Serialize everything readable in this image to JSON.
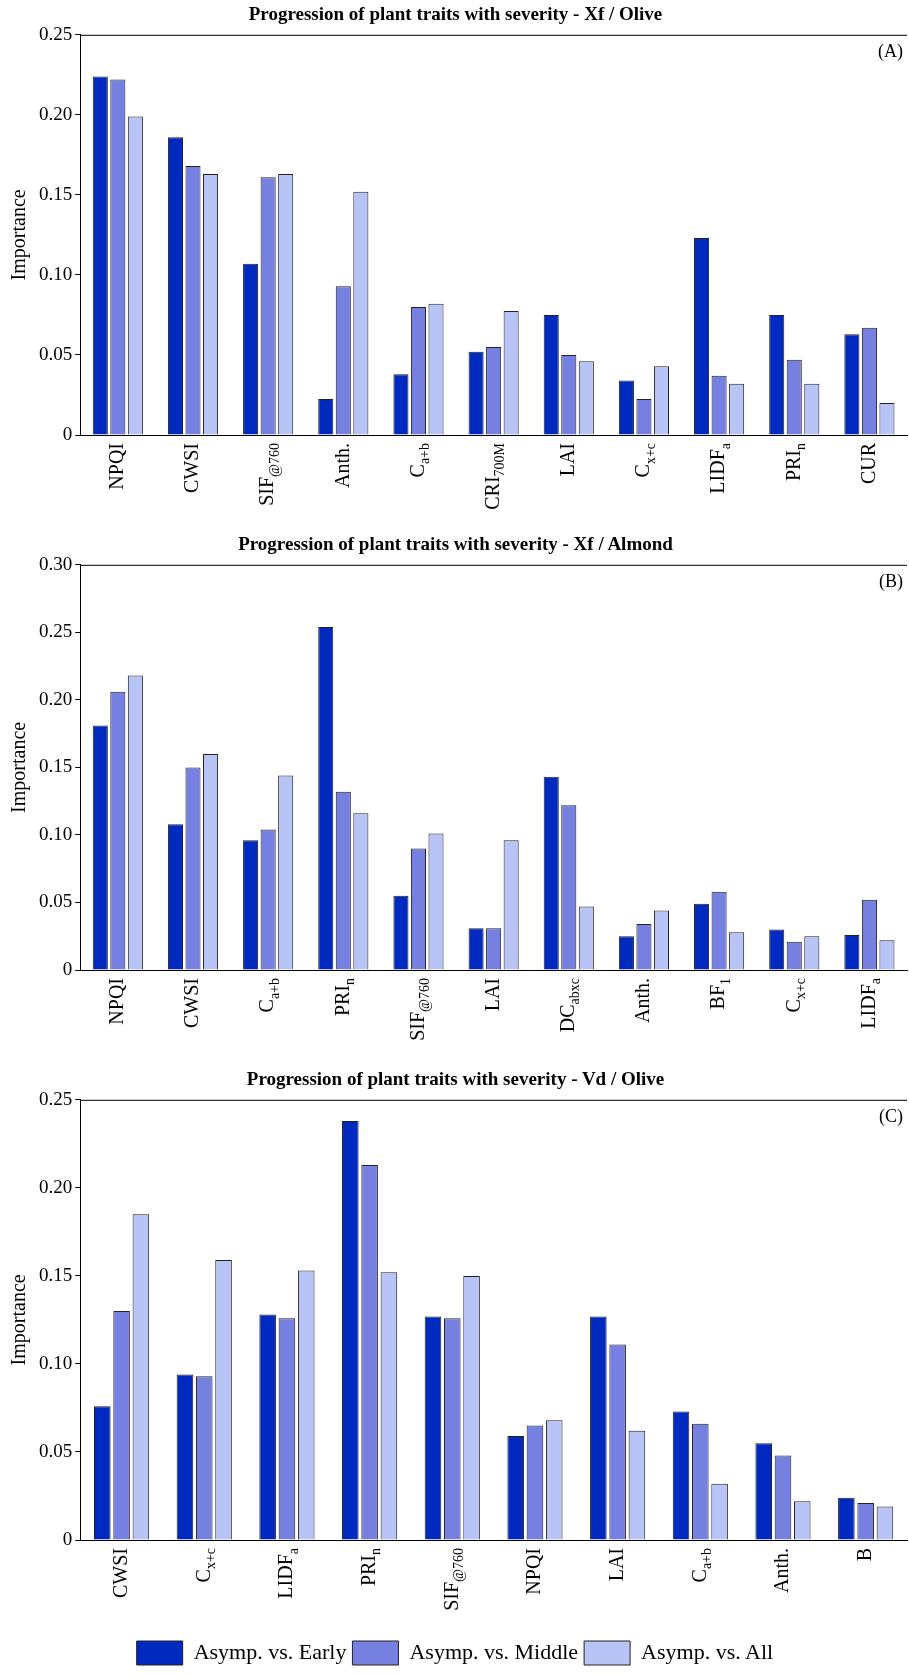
{
  "chart_data": [
    {
      "type": "bar",
      "title": "Progression of plant traits with severity - Xf / Olive",
      "ylabel": "Importance",
      "annotations": [
        "(A)"
      ],
      "categories": [
        "NPQI",
        "CWSI",
        "SIF$_{@760}$",
        "Anth.",
        "C$_{a+b}$",
        "CRI$_{700M}$",
        "LAI",
        "C$_{x+c}$",
        "LIDF$_{a}$",
        "PRI$_{n}$",
        "CUR"
      ],
      "series": [
        {
          "color": "#0029bf",
          "values": [
            0.224,
            0.186,
            0.107,
            0.0225,
            0.038,
            0.052,
            0.075,
            0.034,
            0.123,
            0.075,
            0.063
          ]
        },
        {
          "color": "#7680e0",
          "values": [
            0.222,
            0.168,
            0.161,
            0.093,
            0.08,
            0.055,
            0.05,
            0.0225,
            0.037,
            0.047,
            0.067
          ]
        },
        {
          "color": "#b8c4f5",
          "values": [
            0.199,
            0.163,
            0.163,
            0.152,
            0.082,
            0.0775,
            0.046,
            0.043,
            0.032,
            0.032,
            0.02
          ]
        }
      ],
      "ylim": [
        0,
        0.25
      ],
      "yticks": [
        0,
        0.05,
        {
          "value": 0.1,
          "label": "0.10"
        },
        0.15,
        {
          "value": 0.2,
          "label": "0.20"
        },
        0.25
      ],
      "legend": false
    },
    {
      "type": "bar",
      "title": "Progression of plant traits with severity - Xf / Almond",
      "ylabel": "Importance",
      "annotations": [
        "(B)"
      ],
      "categories": [
        "NPQI",
        "CWSI",
        "C$_{a+b}$",
        "PRI$_{n}$",
        "SIF$_{@760}$",
        "LAI",
        "DC$_{abxc}$",
        "Anth.",
        "BF$_{1}$",
        "C$_{x+c}$",
        "LIDF$_{a}$"
      ],
      "series": [
        {
          "color": "#0029bf",
          "values": [
            0.181,
            0.108,
            0.096,
            0.254,
            0.055,
            0.031,
            0.143,
            0.025,
            0.049,
            0.03,
            0.026
          ]
        },
        {
          "color": "#7680e0",
          "values": [
            0.206,
            0.15,
            0.104,
            0.132,
            0.09,
            0.031,
            0.122,
            0.034,
            0.058,
            0.021,
            0.052
          ]
        },
        {
          "color": "#b8c4f5",
          "values": [
            0.218,
            0.16,
            0.144,
            0.116,
            0.101,
            0.096,
            0.047,
            0.044,
            0.028,
            0.025,
            0.022
          ]
        }
      ],
      "ylim": [
        0,
        0.3
      ],
      "yticks": [
        0,
        0.05,
        {
          "value": 0.1,
          "label": "0.10"
        },
        0.15,
        {
          "value": 0.2,
          "label": "0.20"
        },
        0.25,
        {
          "value": 0.3,
          "label": "0.30"
        }
      ],
      "legend": false
    },
    {
      "type": "bar",
      "title": "Progression of plant traits with severity - Vd / Olive",
      "ylabel": "Importance",
      "annotations": [
        "(C)"
      ],
      "categories": [
        "CWSI",
        "C$_{x+c}$",
        "LIDF$_{a}$",
        "PRI$_{n}$",
        "SIF$_{@760}$",
        "NPQI",
        "LAI",
        "C$_{a+b}$",
        "Anth.",
        "B"
      ],
      "series": [
        {
          "name": "Asymp. vs. Early",
          "color": "#0029bf",
          "values": [
            0.076,
            0.094,
            0.128,
            0.238,
            0.127,
            0.059,
            0.127,
            0.073,
            0.055,
            0.024
          ]
        },
        {
          "name": "Asymp. vs. Middle",
          "color": "#7680e0",
          "values": [
            0.13,
            0.093,
            0.126,
            0.213,
            0.126,
            0.065,
            0.111,
            0.066,
            0.048,
            0.021
          ]
        },
        {
          "name": "Asymp. vs. All",
          "color": "#b8c4f5",
          "values": [
            0.185,
            0.159,
            0.153,
            0.152,
            0.15,
            0.068,
            0.062,
            0.032,
            0.022,
            0.019
          ]
        }
      ],
      "ylim": [
        0,
        0.25
      ],
      "yticks": [
        0,
        0.05,
        {
          "value": 0.1,
          "label": "0.10"
        },
        0.15,
        {
          "value": 0.2,
          "label": "0.20"
        },
        0.25
      ],
      "legend": "bottom"
    }
  ]
}
